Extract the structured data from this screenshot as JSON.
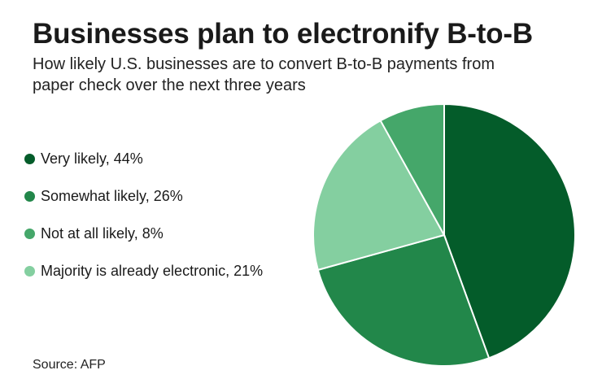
{
  "header": {
    "title": "Businesses plan to electronify B-to-B",
    "subtitle": "How likely U.S. businesses are to convert B-to-B payments from paper check over the next three years"
  },
  "footer": {
    "source": "Source: AFP"
  },
  "chart_data": {
    "type": "pie",
    "title": "Businesses plan to electronify B-to-B",
    "subtitle": "How likely U.S. businesses are to convert B-to-B payments from paper check over the next three years",
    "legend_position": "left",
    "slices": [
      {
        "label": "Very likely, 44%",
        "name": "Very likely",
        "value": 44,
        "color": "#045c2a"
      },
      {
        "label": "Somewhat likely, 26%",
        "name": "Somewhat likely",
        "value": 26,
        "color": "#22874a"
      },
      {
        "label": "Not at all likely, 8%",
        "name": "Not at all likely",
        "value": 8,
        "color": "#45a76a"
      },
      {
        "label": "Majority is already electronic, 21%",
        "name": "Majority is already electronic",
        "value": 21,
        "color": "#84cfa0"
      }
    ],
    "slice_order_clockwise_from_top": [
      0,
      1,
      3,
      2
    ]
  }
}
